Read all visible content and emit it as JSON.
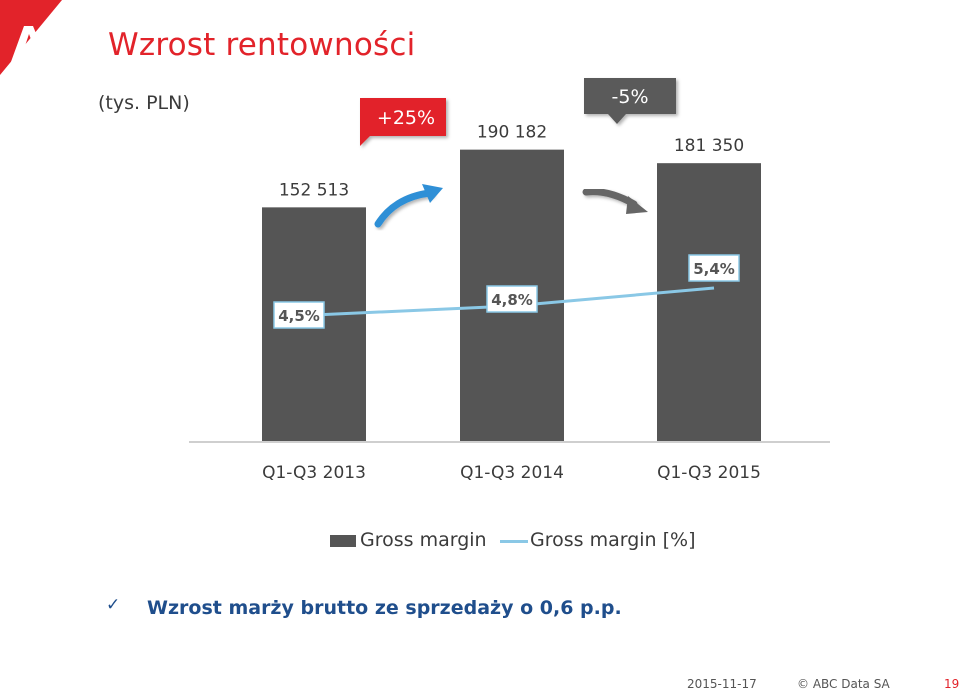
{
  "header": {
    "title": "Wzrost rentowności",
    "unit_label": "(tys. PLN)"
  },
  "chart_data": {
    "type": "bar",
    "categories": [
      "Q1-Q3 2013",
      "Q1-Q3 2014",
      "Q1-Q3 2015"
    ],
    "series": [
      {
        "name": "Gross margin",
        "type": "bar",
        "values": [
          152513,
          190182,
          181350
        ],
        "labels": [
          "152 513",
          "190 182",
          "181 350"
        ],
        "color": "#555555"
      },
      {
        "name": "Gross margin [%]",
        "type": "line",
        "values": [
          4.5,
          4.8,
          5.4
        ],
        "labels": [
          "4,5%",
          "4,8%",
          "5,4%"
        ],
        "color": "#8ac8e6"
      }
    ],
    "ylim": [
      0,
      250000
    ],
    "line_ylim": [
      0,
      10
    ],
    "annotations": [
      {
        "text": "+25%",
        "between": [
          0,
          1
        ],
        "style": "up",
        "color": "#e2232a"
      },
      {
        "text": "-5%",
        "between": [
          1,
          2
        ],
        "style": "down",
        "color": "#5a5a5a"
      }
    ],
    "legend_position": "bottom",
    "grid": false
  },
  "note": {
    "text": "Wzrost marży brutto ze sprzedaży o 0,6 p.p."
  },
  "footer": {
    "date": "2015-11-17",
    "copyright": "© ABC Data SA",
    "page": "19"
  },
  "colors": {
    "brand_red": "#e2232a",
    "bar": "#555555",
    "line": "#8ac8e6",
    "note_blue": "#1f4e8c"
  }
}
